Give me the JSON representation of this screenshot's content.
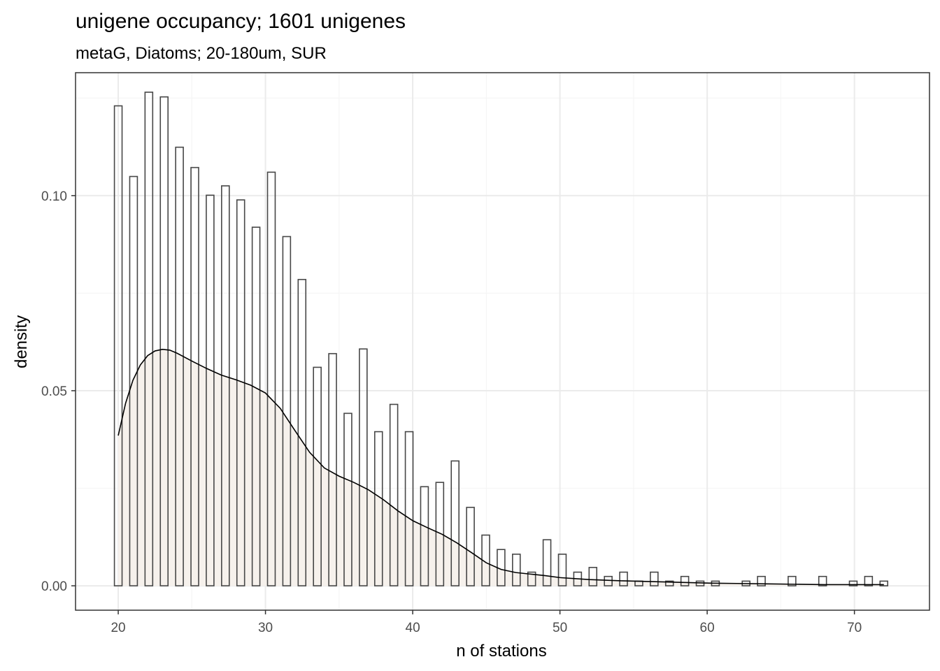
{
  "chart_data": {
    "type": "histogram",
    "title": "unigene occupancy; 1601 unigenes",
    "subtitle": "metaG, Diatoms; 20-180um, SUR",
    "xlabel": "n of stations",
    "ylabel": "density",
    "xlim": [
      17.1,
      75.1
    ],
    "ylim": [
      -0.00625,
      0.1315
    ],
    "x_ticks": [
      20,
      30,
      40,
      50,
      60,
      70
    ],
    "x_tick_labels": [
      "20",
      "30",
      "40",
      "50",
      "60",
      "70"
    ],
    "y_ticks": [
      0.0,
      0.05,
      0.1
    ],
    "y_tick_labels": [
      "0.00",
      "0.05",
      "0.10"
    ],
    "grid": true,
    "bin_width": 0.52,
    "bin_start": 19.74,
    "histogram_counts": [
      0.123,
      0,
      0.1049,
      0,
      0.1265,
      0,
      0.1253,
      0,
      0.1124,
      0,
      0.1072,
      0,
      0.1001,
      0,
      0.1025,
      0,
      0.0989,
      0,
      0.0919,
      0,
      0.106,
      0,
      0.0895,
      0,
      0.0785,
      0,
      0.056,
      0,
      0.0595,
      0,
      0.0442,
      0,
      0.0607,
      0,
      0.0395,
      0,
      0.0465,
      0,
      0.0395,
      0,
      0.0254,
      0,
      0.0265,
      0,
      0.032,
      0,
      0.0201,
      0,
      0.013,
      0,
      0.0093,
      0,
      0.0081,
      0,
      0.0035,
      0,
      0.0118,
      0,
      0.0081,
      0,
      0.0035,
      0,
      0.0047,
      0,
      0.0024,
      0,
      0.0035,
      0,
      0.0012,
      0,
      0.0035,
      0,
      0.0012,
      0,
      0.0024,
      0,
      0.0012,
      0,
      0.0012,
      0,
      0,
      0,
      0.0012,
      0,
      0.0024,
      0,
      0,
      0,
      0.0024,
      0,
      0,
      0,
      0.0024,
      0,
      0,
      0,
      0.0012,
      0,
      0.0024,
      0,
      0.0012
    ],
    "density_curve": {
      "x": [
        20.0,
        20.5,
        21.0,
        21.5,
        22.0,
        22.5,
        23.0,
        23.5,
        24.0,
        25.0,
        26.0,
        27.0,
        28.0,
        29.0,
        30.0,
        31.0,
        32.0,
        33.0,
        34.0,
        35.0,
        36.0,
        37.0,
        38.0,
        39.0,
        40.0,
        41.0,
        42.0,
        43.0,
        44.0,
        45.0,
        46.0,
        47.0,
        48.0,
        49.0,
        50.0,
        52.0,
        54.0,
        56.0,
        58.0,
        60.0,
        62.0,
        64.0,
        66.0,
        68.0,
        70.0,
        72.0
      ],
      "y": [
        0.0385,
        0.0468,
        0.0527,
        0.0566,
        0.059,
        0.0602,
        0.0606,
        0.0604,
        0.0596,
        0.0576,
        0.0557,
        0.054,
        0.0528,
        0.0514,
        0.0494,
        0.0455,
        0.0398,
        0.0342,
        0.0302,
        0.0281,
        0.0265,
        0.0246,
        0.0221,
        0.0192,
        0.0167,
        0.0149,
        0.0132,
        0.011,
        0.0085,
        0.0059,
        0.0042,
        0.0034,
        0.003,
        0.0026,
        0.0021,
        0.0016,
        0.0013,
        0.0011,
        0.0009,
        0.0007,
        0.0006,
        0.0005,
        0.0004,
        0.0003,
        0.0003,
        0.0003
      ]
    },
    "colors": {
      "bar_stroke": "#474747",
      "bar_fill": "none",
      "density_fill": "#f6f1ec",
      "density_stroke": "#000000",
      "panel_border": "#333333",
      "grid_major": "#ebebeb",
      "grid_minor": "#f5f5f5",
      "tick_label": "#4d4d4d"
    }
  }
}
